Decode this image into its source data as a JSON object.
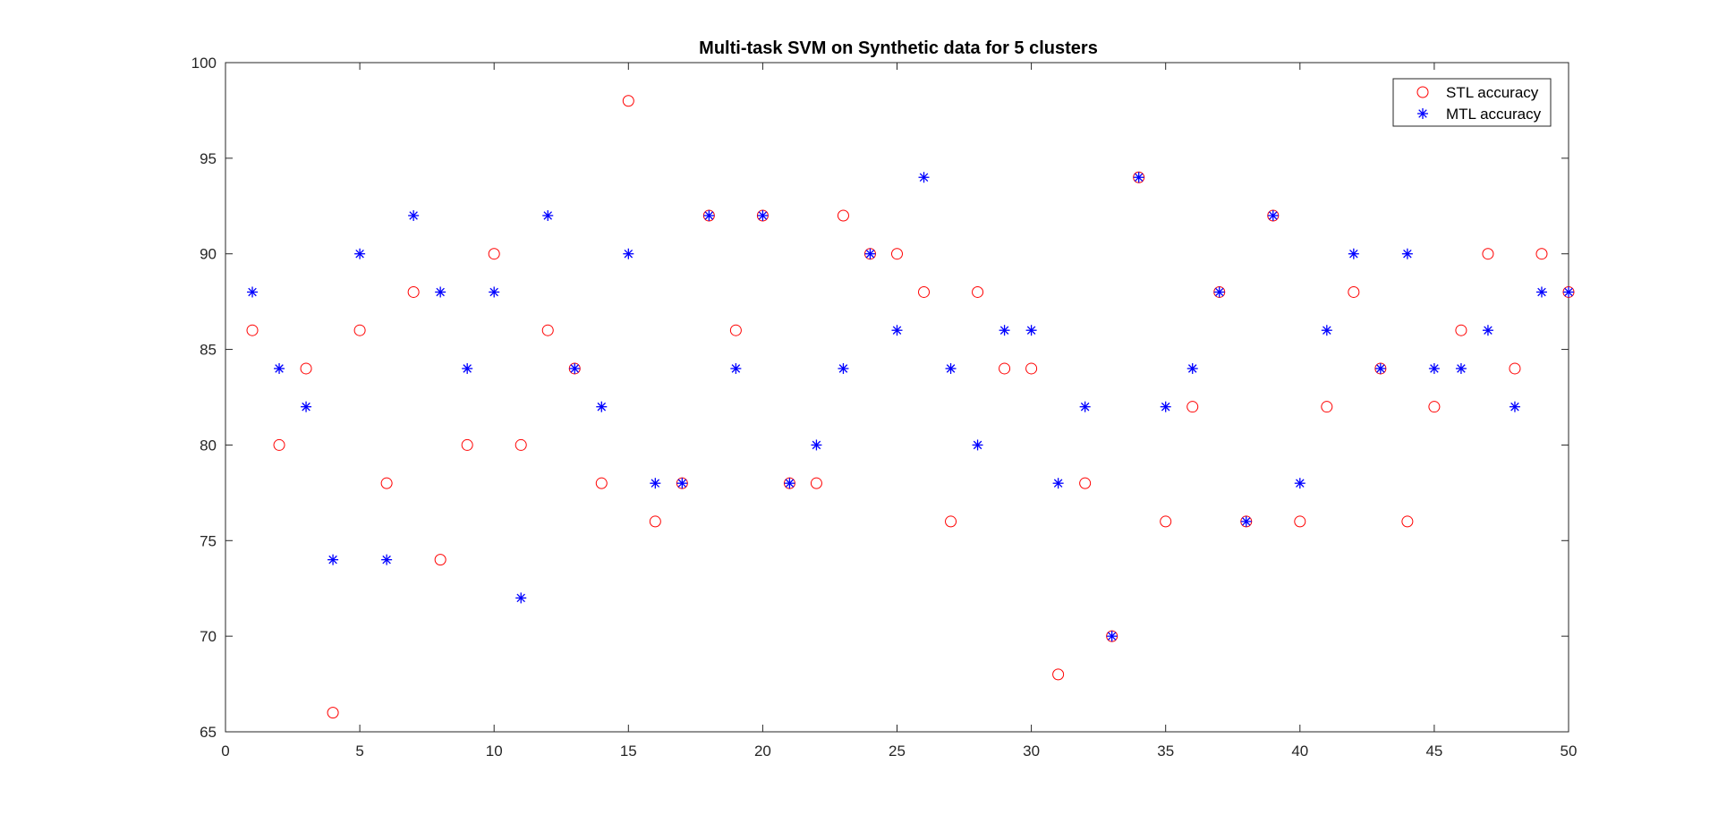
{
  "chart_data": {
    "type": "scatter",
    "title": "Multi-task SVM on Synthetic data for 5 clusters",
    "xlabel": "",
    "ylabel": "",
    "xlim": [
      0,
      50
    ],
    "ylim": [
      65,
      100
    ],
    "xticks": [
      "0",
      "5",
      "10",
      "15",
      "20",
      "25",
      "30",
      "35",
      "40",
      "45",
      "50"
    ],
    "yticks": [
      "65",
      "70",
      "75",
      "80",
      "85",
      "90",
      "95",
      "100"
    ],
    "grid": false,
    "legend_position": "top-right",
    "x": [
      1,
      2,
      3,
      4,
      5,
      6,
      7,
      8,
      9,
      10,
      11,
      12,
      13,
      14,
      15,
      16,
      17,
      18,
      19,
      20,
      21,
      22,
      23,
      24,
      25,
      26,
      27,
      28,
      29,
      30,
      31,
      32,
      33,
      34,
      35,
      36,
      37,
      38,
      39,
      40,
      41,
      42,
      43,
      44,
      45,
      46,
      47,
      48,
      49,
      50
    ],
    "series": [
      {
        "name": "STL accuracy",
        "marker": "circle",
        "color": "#ff0000",
        "values": [
          86,
          80,
          84,
          66,
          86,
          78,
          88,
          74,
          80,
          90,
          80,
          86,
          84,
          78,
          98,
          76,
          78,
          92,
          86,
          92,
          78,
          78,
          92,
          90,
          90,
          88,
          76,
          88,
          84,
          84,
          68,
          78,
          70,
          94,
          76,
          82,
          88,
          76,
          92,
          76,
          82,
          88,
          84,
          76,
          82,
          86,
          90,
          84,
          90,
          88
        ]
      },
      {
        "name": "MTL accuracy",
        "marker": "asterisk",
        "color": "#0000ff",
        "values": [
          88,
          84,
          82,
          74,
          90,
          74,
          92,
          88,
          84,
          88,
          72,
          92,
          84,
          82,
          90,
          78,
          78,
          92,
          84,
          92,
          78,
          80,
          84,
          90,
          86,
          94,
          84,
          80,
          86,
          86,
          78,
          82,
          70,
          94,
          82,
          84,
          88,
          76,
          92,
          78,
          86,
          90,
          84,
          90,
          84,
          84,
          86,
          82,
          88,
          88
        ]
      }
    ]
  }
}
